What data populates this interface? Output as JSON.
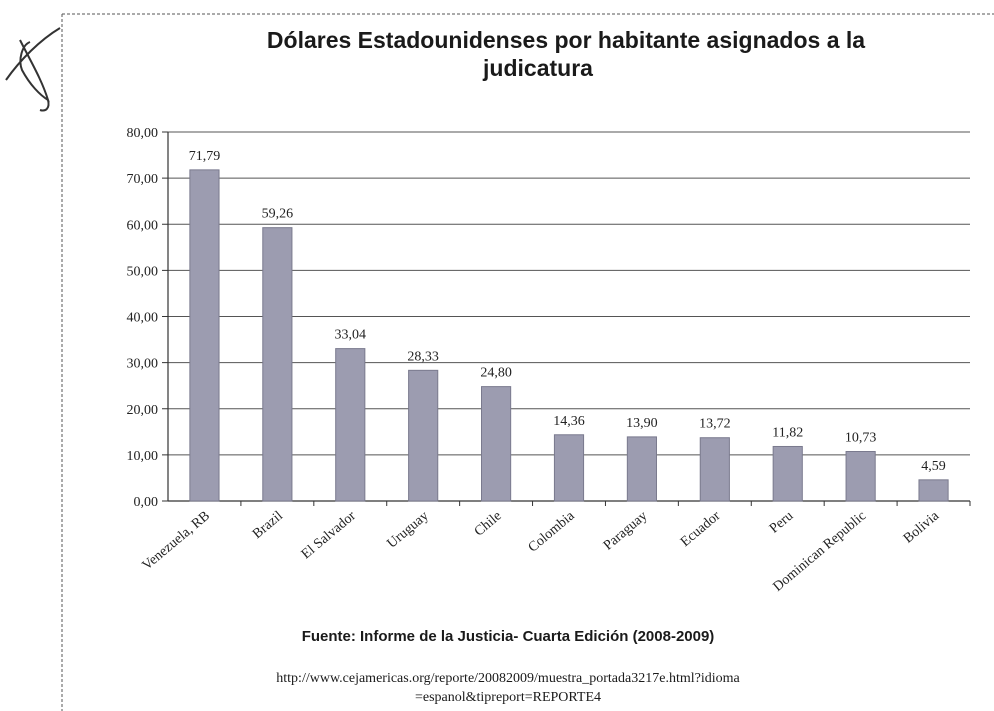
{
  "chart_data": {
    "type": "bar",
    "title": "Dólares Estadounidenses por habitante asignados a la judicatura",
    "xlabel": "",
    "ylabel": "",
    "ylim": [
      0,
      80
    ],
    "yticks": [
      "0,00",
      "10,00",
      "20,00",
      "30,00",
      "40,00",
      "50,00",
      "60,00",
      "70,00",
      "80,00"
    ],
    "grid": true,
    "legend": "none",
    "categories": [
      "Venezuela, RB",
      "Brazil",
      "El Salvador",
      "Uruguay",
      "Chile",
      "Colombia",
      "Paraguay",
      "Ecuador",
      "Peru",
      "Dominican Republic",
      "Bolivia"
    ],
    "values": [
      71.79,
      59.26,
      33.04,
      28.33,
      24.8,
      14.36,
      13.9,
      13.72,
      11.82,
      10.73,
      4.59
    ],
    "data_labels": [
      "71,79",
      "59,26",
      "33,04",
      "28,33",
      "24,80",
      "14,36",
      "13,90",
      "13,72",
      "11,82",
      "10,73",
      "4,59"
    ],
    "bar_color": "#9c9cb0"
  },
  "source": {
    "line": "Fuente: Informe de la Justicia- Cuarta Edición (2008-2009)",
    "url_line1": "http://www.cejamericas.org/reporte/20082009/muestra_portada3217e.html?idioma",
    "url_line2": "=espanol&tipreport=REPORTE4"
  }
}
